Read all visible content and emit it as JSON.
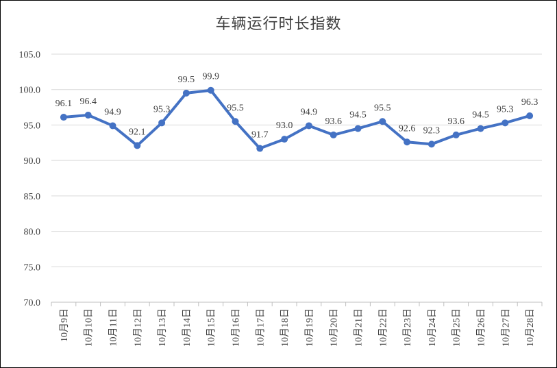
{
  "chart_data": {
    "type": "line",
    "title": "车辆运行时长指数",
    "categories": [
      "10月9日",
      "10月10日",
      "10月11日",
      "10月12日",
      "10月13日",
      "10月14日",
      "10月15日",
      "10月16日",
      "10月17日",
      "10月18日",
      "10月19日",
      "10月20日",
      "10月21日",
      "10月22日",
      "10月23日",
      "10月24日",
      "10月25日",
      "10月26日",
      "10月27日",
      "10月28日"
    ],
    "series": [
      {
        "values": [
          96.1,
          96.4,
          94.9,
          92.1,
          95.3,
          99.5,
          99.9,
          95.5,
          91.7,
          93.0,
          94.9,
          93.6,
          94.5,
          95.5,
          92.6,
          92.3,
          93.6,
          94.5,
          95.3,
          96.3
        ]
      }
    ],
    "data_labels": [
      "96.1",
      "96.4",
      "94.9",
      "92.1",
      "95.3",
      "99.5",
      "99.9",
      "95.5",
      "91.7",
      "93.0",
      "94.9",
      "93.6",
      "94.5",
      "95.5",
      "92.6",
      "92.3",
      "93.6",
      "94.5",
      "95.3",
      "96.3"
    ],
    "ylim": [
      70,
      105
    ],
    "yticks": [
      70,
      75,
      80,
      85,
      90,
      95,
      100,
      105
    ],
    "ytick_labels": [
      "70.0",
      "75.0",
      "80.0",
      "85.0",
      "90.0",
      "95.0",
      "100.0",
      "105.0"
    ],
    "grid": true,
    "legend": "none",
    "colors": {
      "line": "#4472C4",
      "grid": "#D9D9D9",
      "axis": "#BFBFBF",
      "text": "#404040"
    }
  }
}
